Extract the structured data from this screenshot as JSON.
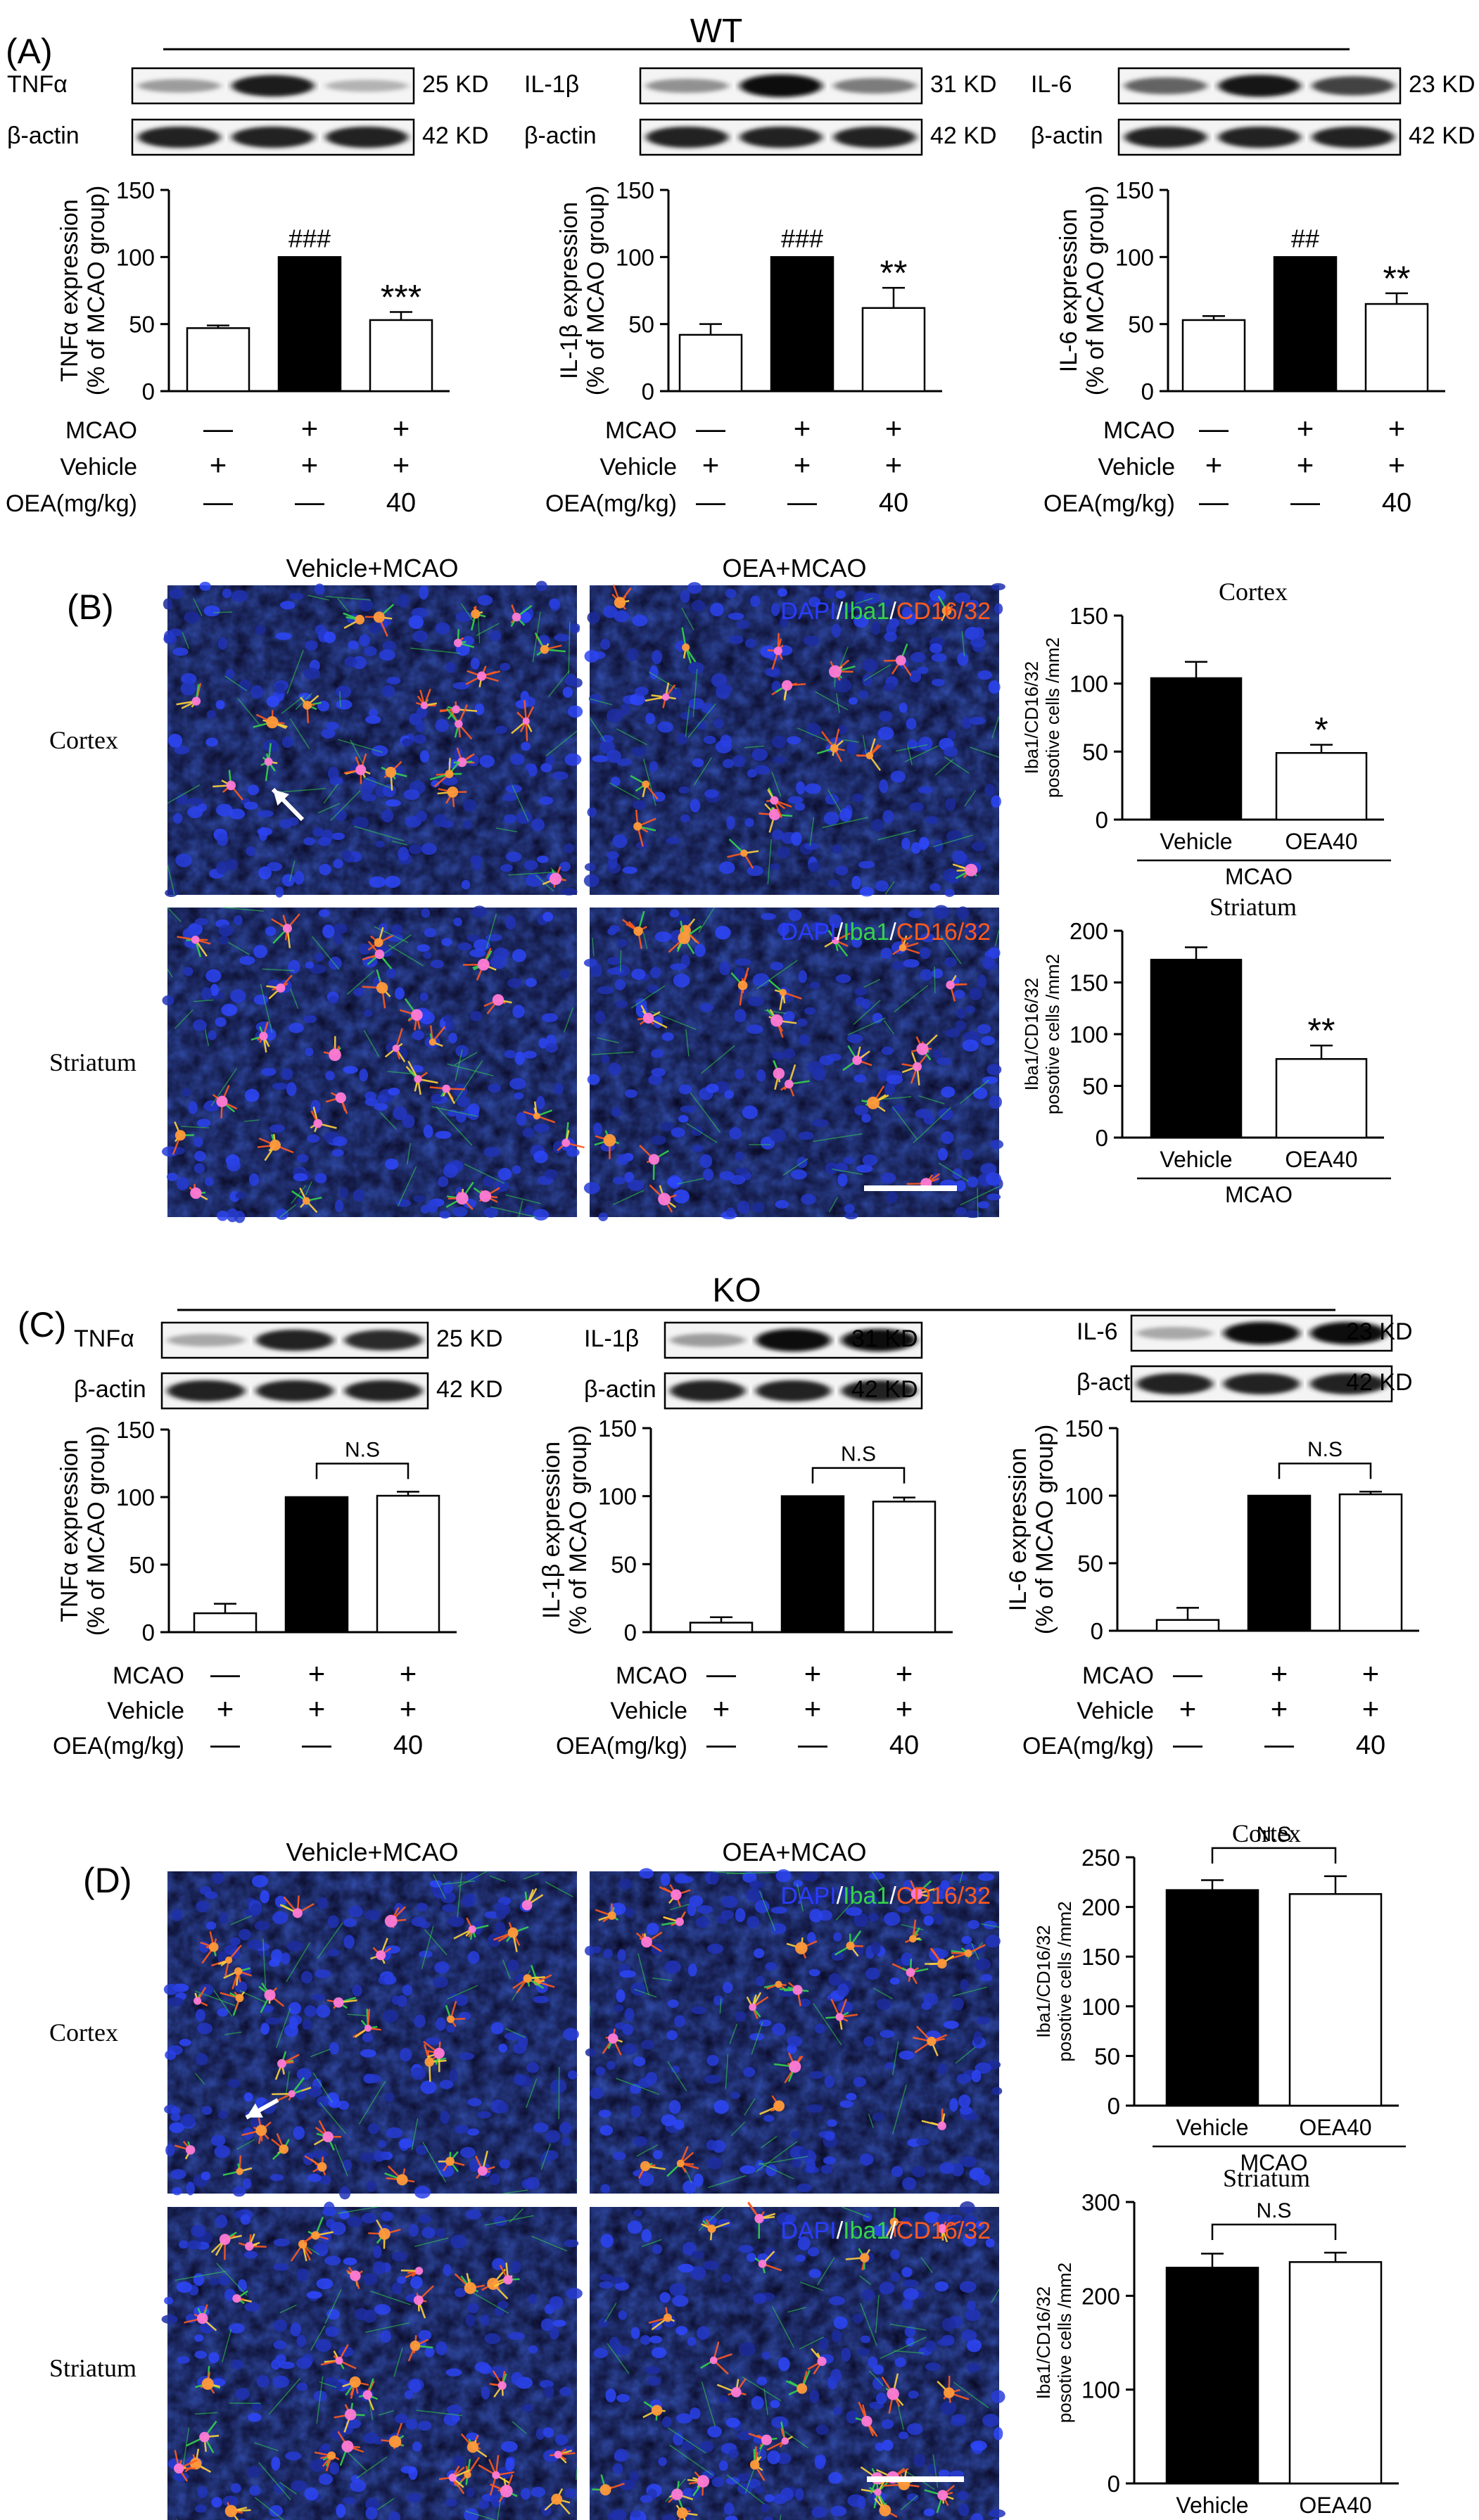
{
  "panels": {
    "A": {
      "label": "(A)",
      "group": "WT",
      "blots": [
        {
          "target": "TNFα",
          "target_kd": "25 KD",
          "control": "β-actin",
          "control_kd": "42 KD",
          "target_intensity": [
            0.35,
            0.92,
            0.25
          ],
          "control_intensity": [
            0.9,
            0.9,
            0.9
          ]
        },
        {
          "target": "IL-1β",
          "target_kd": "31 KD",
          "control": "β-actin",
          "control_kd": "42 KD",
          "target_intensity": [
            0.4,
            1.0,
            0.5
          ],
          "control_intensity": [
            0.9,
            0.9,
            0.9
          ]
        },
        {
          "target": "IL-6",
          "target_kd": "23 KD",
          "control": "β-actin",
          "control_kd": "42 KD",
          "target_intensity": [
            0.6,
            0.95,
            0.75
          ],
          "control_intensity": [
            0.9,
            0.9,
            0.9
          ]
        }
      ],
      "treatments": {
        "rows": [
          "MCAO",
          "Vehicle",
          "OEA(mg/kg)"
        ],
        "values": [
          [
            "—",
            "+",
            "+"
          ],
          [
            "+",
            "+",
            "+"
          ],
          [
            "—",
            "—",
            "40"
          ]
        ]
      }
    },
    "B": {
      "label": "(B)",
      "image_columns": [
        "Vehicle+MCAO",
        "OEA+MCAO"
      ],
      "image_rows": [
        "Cortex",
        "Striatum"
      ],
      "stain_legend": [
        "DAPI",
        "/",
        "Iba1",
        "/",
        "CD16/32"
      ]
    },
    "C": {
      "label": "(C)",
      "group": "KO",
      "blots": [
        {
          "target": "TNFα",
          "target_kd": "25 KD",
          "control": "β-actin",
          "control_kd": "42 KD",
          "target_intensity": [
            0.3,
            0.9,
            0.85
          ],
          "control_intensity": [
            0.9,
            0.9,
            0.9
          ]
        },
        {
          "target": "IL-1β",
          "target_kd": "31 KD",
          "control": "β-actin",
          "control_kd": "42 KD",
          "target_intensity": [
            0.35,
            1.0,
            1.0
          ],
          "control_intensity": [
            0.9,
            0.9,
            0.9
          ]
        },
        {
          "target": "IL-6",
          "target_kd": "23 KD",
          "control": "β-actin",
          "control_kd": "42 KD",
          "target_intensity": [
            0.3,
            1.0,
            1.0
          ],
          "control_intensity": [
            0.9,
            0.9,
            0.9
          ]
        }
      ],
      "treatments": {
        "rows": [
          "MCAO",
          "Vehicle",
          "OEA(mg/kg)"
        ],
        "values": [
          [
            "—",
            "+",
            "+"
          ],
          [
            "+",
            "+",
            "+"
          ],
          [
            "—",
            "—",
            "40"
          ]
        ]
      }
    },
    "D": {
      "label": "(D)",
      "image_columns": [
        "Vehicle+MCAO",
        "OEA+MCAO"
      ],
      "image_rows": [
        "Cortex",
        "Striatum"
      ],
      "stain_legend": [
        "DAPI",
        "/",
        "Iba1",
        "/",
        "CD16/32"
      ]
    }
  },
  "colors": {
    "dapi": "#2a3cff",
    "iba1": "#35d24a",
    "cd16": "#ff5a1f",
    "bar_black": "#000000",
    "bar_white": "#ffffff"
  },
  "chart_data": [
    {
      "id": "A1",
      "type": "bar",
      "categories": [
        "",
        "",
        ""
      ],
      "values": [
        47,
        100,
        53
      ],
      "errors": [
        2,
        0,
        6
      ],
      "fills": [
        "white",
        "black",
        "white"
      ],
      "annotations": [
        "",
        "###",
        "***"
      ],
      "ylabel": [
        "TNFα expression",
        "(% of MCAO group)"
      ],
      "ylim": [
        0,
        150
      ],
      "yticks": [
        0,
        50,
        100,
        150
      ],
      "bracket": null
    },
    {
      "id": "A2",
      "type": "bar",
      "categories": [
        "",
        "",
        ""
      ],
      "values": [
        42,
        100,
        62
      ],
      "errors": [
        8,
        0,
        15
      ],
      "fills": [
        "white",
        "black",
        "white"
      ],
      "annotations": [
        "",
        "###",
        "**"
      ],
      "ylabel": [
        "IL-1β expression",
        "(% of MCAO group)"
      ],
      "ylim": [
        0,
        150
      ],
      "yticks": [
        0,
        50,
        100,
        150
      ],
      "bracket": null
    },
    {
      "id": "A3",
      "type": "bar",
      "categories": [
        "",
        "",
        ""
      ],
      "values": [
        53,
        100,
        65
      ],
      "errors": [
        3,
        0,
        8
      ],
      "fills": [
        "white",
        "black",
        "white"
      ],
      "annotations": [
        "",
        "##",
        "**"
      ],
      "ylabel": [
        "IL-6 expression",
        "(% of MCAO group)"
      ],
      "ylim": [
        0,
        150
      ],
      "yticks": [
        0,
        50,
        100,
        150
      ],
      "bracket": null
    },
    {
      "id": "B1",
      "type": "bar",
      "title": "Cortex",
      "categories": [
        "Vehicle",
        "OEA40"
      ],
      "group_label": "MCAO",
      "values": [
        104,
        49
      ],
      "errors": [
        12,
        6
      ],
      "fills": [
        "black",
        "white"
      ],
      "annotations": [
        "",
        "*"
      ],
      "ylabel": [
        "Iba1/CD16/32",
        "posotive cells /mm2"
      ],
      "ylim": [
        0,
        150
      ],
      "yticks": [
        0,
        50,
        100,
        150
      ],
      "bracket": null
    },
    {
      "id": "B2",
      "type": "bar",
      "title": "Striatum",
      "categories": [
        "Vehicle",
        "OEA40"
      ],
      "group_label": "MCAO",
      "values": [
        172,
        76
      ],
      "errors": [
        12,
        13
      ],
      "fills": [
        "black",
        "white"
      ],
      "annotations": [
        "",
        "**"
      ],
      "ylabel": [
        "Iba1/CD16/32",
        "posotive cells /mm2"
      ],
      "ylim": [
        0,
        200
      ],
      "yticks": [
        0,
        50,
        100,
        150,
        200
      ],
      "bracket": null
    },
    {
      "id": "C1",
      "type": "bar",
      "categories": [
        "",
        "",
        ""
      ],
      "values": [
        14,
        100,
        101
      ],
      "errors": [
        7,
        0,
        3
      ],
      "fills": [
        "white",
        "black",
        "white"
      ],
      "annotations": [
        "",
        "",
        ""
      ],
      "ylabel": [
        "TNFα expression",
        "(% of MCAO group)"
      ],
      "ylim": [
        0,
        150
      ],
      "yticks": [
        0,
        50,
        100,
        150
      ],
      "bracket": {
        "from": 1,
        "to": 2,
        "label": "N.S"
      }
    },
    {
      "id": "C2",
      "type": "bar",
      "categories": [
        "",
        "",
        ""
      ],
      "values": [
        7,
        100,
        96
      ],
      "errors": [
        4,
        0,
        3
      ],
      "fills": [
        "white",
        "black",
        "white"
      ],
      "annotations": [
        "",
        "",
        ""
      ],
      "ylabel": [
        "IL-1β expression",
        "(% of MCAO group)"
      ],
      "ylim": [
        0,
        150
      ],
      "yticks": [
        0,
        50,
        100,
        150
      ],
      "bracket": {
        "from": 1,
        "to": 2,
        "label": "N.S"
      }
    },
    {
      "id": "C3",
      "type": "bar",
      "categories": [
        "",
        "",
        ""
      ],
      "values": [
        8,
        100,
        101
      ],
      "errors": [
        9,
        0,
        2
      ],
      "fills": [
        "white",
        "black",
        "white"
      ],
      "annotations": [
        "",
        "",
        ""
      ],
      "ylabel": [
        "IL-6 expression",
        "(% of MCAO group)"
      ],
      "ylim": [
        0,
        150
      ],
      "yticks": [
        0,
        50,
        100,
        150
      ],
      "bracket": {
        "from": 1,
        "to": 2,
        "label": "N.S"
      }
    },
    {
      "id": "D1",
      "type": "bar",
      "title": "Cortex",
      "categories": [
        "Vehicle",
        "OEA40"
      ],
      "group_label": "MCAO",
      "values": [
        217,
        213
      ],
      "errors": [
        10,
        18
      ],
      "fills": [
        "black",
        "white"
      ],
      "annotations": [
        "",
        ""
      ],
      "ylabel": [
        "Iba1/CD16/32",
        "posotive cells /mm2"
      ],
      "ylim": [
        0,
        250
      ],
      "yticks": [
        0,
        50,
        100,
        150,
        200,
        250
      ],
      "bracket": {
        "from": 0,
        "to": 1,
        "label": "N.S"
      }
    },
    {
      "id": "D2",
      "type": "bar",
      "title": "Striatum",
      "categories": [
        "Vehicle",
        "OEA40"
      ],
      "group_label": "MCAO",
      "values": [
        230,
        236
      ],
      "errors": [
        15,
        10
      ],
      "fills": [
        "black",
        "white"
      ],
      "annotations": [
        "",
        ""
      ],
      "ylabel": [
        "Iba1/CD16/32",
        "posotive cells /mm2"
      ],
      "ylim": [
        0,
        300
      ],
      "yticks": [
        0,
        100,
        200,
        300
      ],
      "bracket": {
        "from": 0,
        "to": 1,
        "label": "N.S"
      }
    }
  ]
}
